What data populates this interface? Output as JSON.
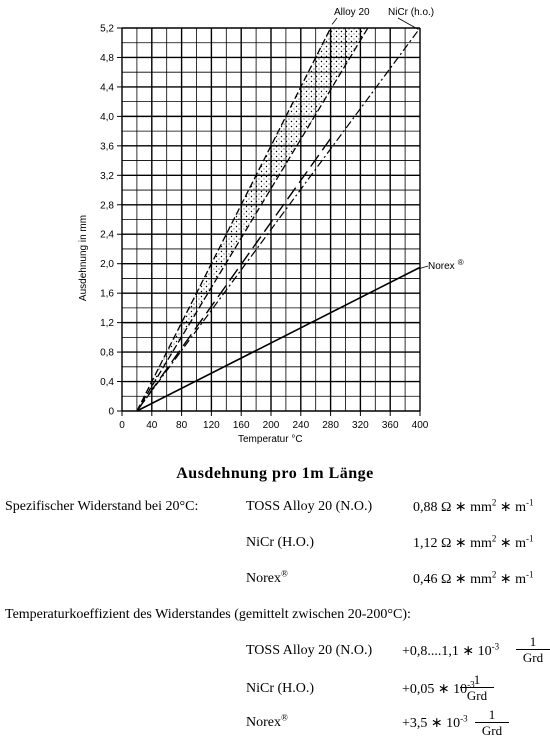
{
  "chart_data": {
    "type": "line",
    "ylabel": "Ausdehnung in mm",
    "xlabel": "Temperatur °C",
    "x_ticks": [
      "0",
      "40",
      "80",
      "120",
      "160",
      "200",
      "240",
      "280",
      "320",
      "360",
      "400"
    ],
    "y_ticks": [
      "0",
      "0,4",
      "0,8",
      "1,2",
      "1,6",
      "2,0",
      "2,4",
      "2,8",
      "3,2",
      "3,6",
      "4,0",
      "4,4",
      "4,8",
      "5,2"
    ],
    "xlim": [
      0,
      400
    ],
    "ylim": [
      0,
      5.2
    ],
    "grid": true,
    "series": [
      {
        "name": "Alloy 20",
        "points": [
          [
            20,
            0
          ],
          [
            280,
            5.2
          ]
        ]
      },
      {
        "points": [
          [
            20,
            0
          ],
          [
            330,
            5.2
          ]
        ]
      },
      {
        "name": "NiCr (h.o.)",
        "points": [
          [
            20,
            0
          ],
          [
            400,
            5.2
          ]
        ]
      },
      {
        "points": [
          [
            20,
            0
          ],
          [
            280,
            3.7
          ]
        ]
      },
      {
        "name": "Norex",
        "points": [
          [
            20,
            0
          ],
          [
            400,
            1.95
          ]
        ]
      }
    ],
    "norex_superscript": "®"
  },
  "heading": "Ausdehnung pro 1m Länge",
  "resistance": {
    "label": "Spezifischer Widerstand bei 20°C:",
    "rows": [
      {
        "material": "TOSS Alloy 20 (N.O.)",
        "value": "0,88 Ω ∗ mm",
        "exp1": "2",
        "unit": " ∗ m",
        "exp2": "-1"
      },
      {
        "material": "NiCr (H.O.)",
        "value": "1,12 Ω ∗ mm",
        "exp1": "2",
        "unit": " ∗ m",
        "exp2": "-1"
      },
      {
        "material": "Norex",
        "sup": "®",
        "value": "0,46 Ω ∗ mm",
        "exp1": "2",
        "unit": " ∗ m",
        "exp2": "-1"
      }
    ]
  },
  "coefficient": {
    "label": "Temperaturkoeffizient des Widerstandes (gemittelt zwischen 20-200°C):",
    "rows": [
      {
        "material": "TOSS Alloy 20 (N.O.)",
        "value": "+0,8....1,1 ∗ 10",
        "exp": "-3",
        "num": "1",
        "den": "Grd"
      },
      {
        "material": "NiCr (H.O.)",
        "value": "+0,05 ∗ 10",
        "exp": "-3",
        "num": "1",
        "den": "Grd"
      },
      {
        "material": "Norex",
        "sup": "®",
        "value": "+3,5 ∗ 10",
        "exp": "-3",
        "num": "1",
        "den": "Grd"
      }
    ]
  }
}
